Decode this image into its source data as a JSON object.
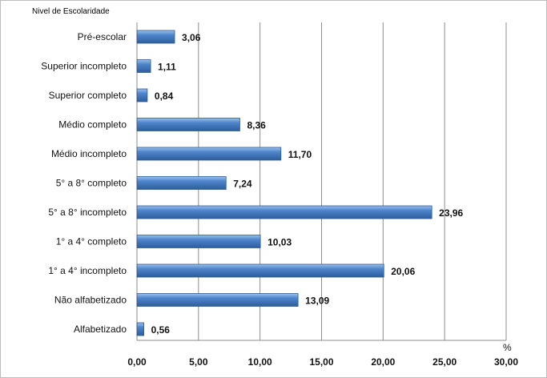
{
  "chart_data": {
    "type": "bar",
    "orientation": "horizontal",
    "title": "Nivel de Escolaridade",
    "xlabel": "%",
    "categories": [
      "Pré-escolar",
      "Superior incompleto",
      "Superior completo",
      "Médio completo",
      "Médio incompleto",
      "5° a 8° completo",
      "5° a 8° incompleto",
      "1° a 4° completo",
      "1° a 4° incompleto",
      "Não alfabetizado",
      "Alfabetizado"
    ],
    "values": [
      3.06,
      1.11,
      0.84,
      8.36,
      11.7,
      7.24,
      23.96,
      10.03,
      20.06,
      13.09,
      0.56
    ],
    "value_labels": [
      "3,06",
      "1,11",
      "0,84",
      "8,36",
      "11,70",
      "7,24",
      "23,96",
      "10,03",
      "20,06",
      "13,09",
      "0,56"
    ],
    "xlim": [
      0,
      30
    ],
    "xticks": [
      0,
      5,
      10,
      15,
      20,
      25,
      30
    ],
    "xtick_labels": [
      "0,00",
      "5,00",
      "10,00",
      "15,00",
      "20,00",
      "25,00",
      "30,00"
    ],
    "grid": true,
    "legend": "none",
    "colors": {
      "bar": "#4a7ebb",
      "bar_edge": "#2f5a92",
      "grid": "#8c8c8c"
    }
  }
}
